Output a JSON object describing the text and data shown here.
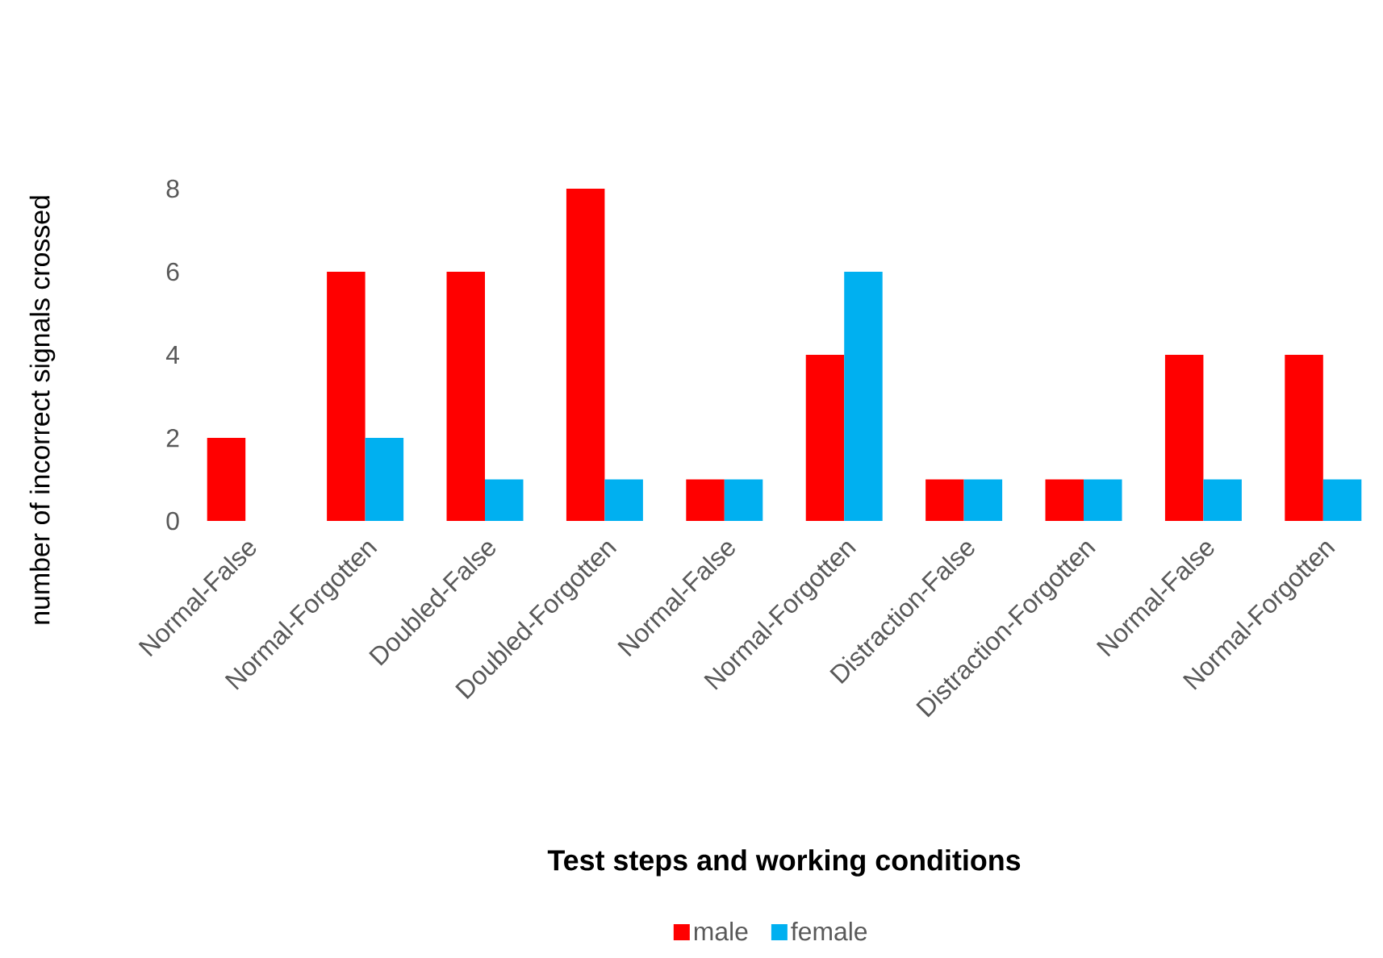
{
  "chart_data": {
    "type": "bar",
    "xlabel": "Test steps and working conditions",
    "ylabel": "number of incorrect signals crossed",
    "categories": [
      "Normal-False",
      "Normal-Forgotten",
      "Doubled-False",
      "Doubled-Forgotten",
      "Normal-False",
      "Normal-Forgotten",
      "Distraction-False",
      "Distraction-Forgotten",
      "Normal-False",
      "Normal-Forgotten"
    ],
    "series": [
      {
        "name": "male",
        "color": "#ff0000",
        "values": [
          2,
          6,
          6,
          8,
          1,
          4,
          1,
          1,
          4,
          4
        ]
      },
      {
        "name": "female",
        "color": "#00b0f0",
        "values": [
          0,
          2,
          1,
          1,
          1,
          6,
          1,
          1,
          1,
          1
        ]
      }
    ],
    "ylim": [
      0,
      8
    ],
    "yticks": [
      0,
      2,
      4,
      6,
      8
    ],
    "legend": "bottom"
  }
}
